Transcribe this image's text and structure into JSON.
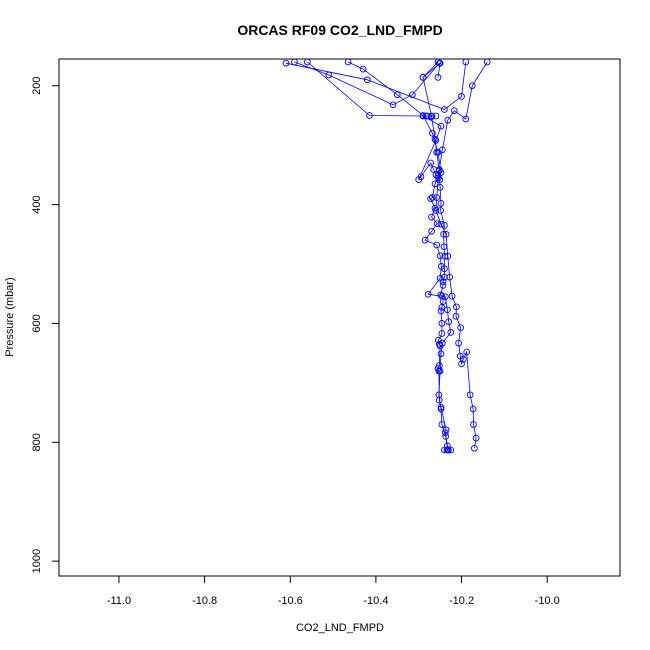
{
  "chart_data": {
    "type": "line",
    "title": "ORCAS RF09 CO2_LND_FMPD",
    "xlabel": "CO2_LND_FMPD",
    "ylabel": "Pressure (mbar)",
    "xlim": [
      -11.14,
      -9.83
    ],
    "ylim": [
      1025,
      155
    ],
    "y_reversed": true,
    "x_ticks": [
      -11.0,
      -10.8,
      -10.6,
      -10.4,
      -10.2,
      -10.0
    ],
    "x_tick_labels": [
      "-11.0",
      "-10.8",
      "-10.6",
      "-10.4",
      "-10.2",
      "-10.0"
    ],
    "y_ticks": [
      200,
      400,
      600,
      800,
      1000
    ],
    "y_tick_labels": [
      "200",
      "400",
      "600",
      "800",
      "1000"
    ],
    "grid": false,
    "legend": "none",
    "color": "#0000ff",
    "series": [
      {
        "points": [
          [
            -10.234,
            813
          ],
          [
            -10.231,
            813
          ],
          [
            -10.24,
            813
          ],
          [
            -10.225,
            813
          ],
          [
            -10.233,
            806
          ],
          [
            -10.238,
            784
          ],
          [
            -10.236,
            779
          ],
          [
            -10.248,
            741
          ],
          [
            -10.252,
            729
          ],
          [
            -10.253,
            680
          ],
          [
            -10.255,
            676
          ],
          [
            -10.252,
            671
          ],
          [
            -10.25,
            638
          ],
          [
            -10.252,
            635
          ],
          [
            -10.254,
            628
          ],
          [
            -10.246,
            617
          ],
          [
            -10.246,
            600
          ],
          [
            -10.248,
            579
          ],
          [
            -10.246,
            573
          ],
          [
            -10.243,
            563
          ],
          [
            -10.246,
            554
          ],
          [
            -10.249,
            552
          ],
          [
            -10.243,
            536
          ],
          [
            -10.243,
            530
          ],
          [
            -10.24,
            522
          ],
          [
            -10.24,
            508
          ],
          [
            -10.239,
            487
          ],
          [
            -10.241,
            471
          ],
          [
            -10.242,
            450
          ],
          [
            -10.24,
            435
          ],
          [
            -10.249,
            410
          ],
          [
            -10.248,
            398
          ],
          [
            -10.25,
            371
          ],
          [
            -10.251,
            358
          ],
          [
            -10.252,
            343
          ],
          [
            -10.258,
            312
          ],
          [
            -10.262,
            290
          ],
          [
            -10.27,
            252
          ],
          [
            -10.29,
            186
          ],
          [
            -10.255,
            160
          ]
        ]
      },
      {
        "points": [
          [
            -10.17,
            810
          ],
          [
            -10.166,
            793
          ],
          [
            -10.172,
            770
          ],
          [
            -10.173,
            744
          ],
          [
            -10.18,
            720
          ],
          [
            -10.188,
            648
          ],
          [
            -10.196,
            660
          ],
          [
            -10.2,
            668
          ],
          [
            -10.203,
            655
          ],
          [
            -10.207,
            633
          ],
          [
            -10.202,
            607
          ],
          [
            -10.213,
            588
          ],
          [
            -10.212,
            572
          ],
          [
            -10.222,
            554
          ],
          [
            -10.228,
            522
          ],
          [
            -10.232,
            487
          ],
          [
            -10.236,
            450
          ],
          [
            -10.248,
            433
          ],
          [
            -10.26,
            410
          ],
          [
            -10.258,
            388
          ],
          [
            -10.254,
            355
          ],
          [
            -10.252,
            341
          ],
          [
            -10.245,
            308
          ],
          [
            -10.232,
            258
          ],
          [
            -10.217,
            242
          ],
          [
            -10.19,
            256
          ],
          [
            -10.175,
            200
          ],
          [
            -10.14,
            160
          ]
        ]
      },
      {
        "points": [
          [
            -10.232,
            813
          ],
          [
            -10.237,
            790
          ],
          [
            -10.246,
            770
          ],
          [
            -10.248,
            744
          ],
          [
            -10.253,
            720
          ],
          [
            -10.25,
            680
          ],
          [
            -10.248,
            651
          ],
          [
            -10.245,
            633
          ],
          [
            -10.225,
            615
          ],
          [
            -10.23,
            597
          ],
          [
            -10.233,
            577
          ],
          [
            -10.238,
            555
          ],
          [
            -10.278,
            551
          ],
          [
            -10.25,
            524
          ],
          [
            -10.247,
            504
          ],
          [
            -10.25,
            486
          ],
          [
            -10.258,
            468
          ],
          [
            -10.285,
            460
          ],
          [
            -10.27,
            445
          ],
          [
            -10.257,
            432
          ],
          [
            -10.27,
            421
          ],
          [
            -10.262,
            406
          ],
          [
            -10.272,
            390
          ],
          [
            -10.268,
            388
          ],
          [
            -10.262,
            365
          ],
          [
            -10.255,
            352
          ],
          [
            -10.26,
            350
          ],
          [
            -10.265,
            341
          ],
          [
            -10.272,
            330
          ],
          [
            -10.295,
            353
          ],
          [
            -10.3,
            358
          ],
          [
            -10.26,
            292
          ],
          [
            -10.248,
            268
          ],
          [
            -10.29,
            251
          ],
          [
            -10.28,
            251
          ],
          [
            -10.27,
            251
          ],
          [
            -10.26,
            251
          ],
          [
            -10.283,
            251
          ],
          [
            -10.415,
            250
          ],
          [
            -10.56,
            160
          ]
        ]
      },
      {
        "points": [
          [
            -10.248,
            346
          ],
          [
            -10.255,
            312
          ],
          [
            -10.268,
            280
          ],
          [
            -10.29,
            250
          ],
          [
            -10.35,
            215
          ],
          [
            -10.43,
            172
          ],
          [
            -10.465,
            160
          ]
        ]
      },
      {
        "points": [
          [
            -10.61,
            162
          ],
          [
            -10.42,
            190
          ],
          [
            -10.24,
            240
          ],
          [
            -10.2,
            218
          ],
          [
            -10.19,
            160
          ]
        ]
      },
      {
        "points": [
          [
            -10.252,
            162
          ],
          [
            -10.315,
            215
          ],
          [
            -10.36,
            232
          ],
          [
            -10.51,
            182
          ],
          [
            -10.59,
            160
          ]
        ]
      },
      {
        "points": [
          [
            -10.255,
            186
          ],
          [
            -10.25,
            162
          ],
          [
            -10.29,
            186
          ]
        ]
      }
    ]
  }
}
